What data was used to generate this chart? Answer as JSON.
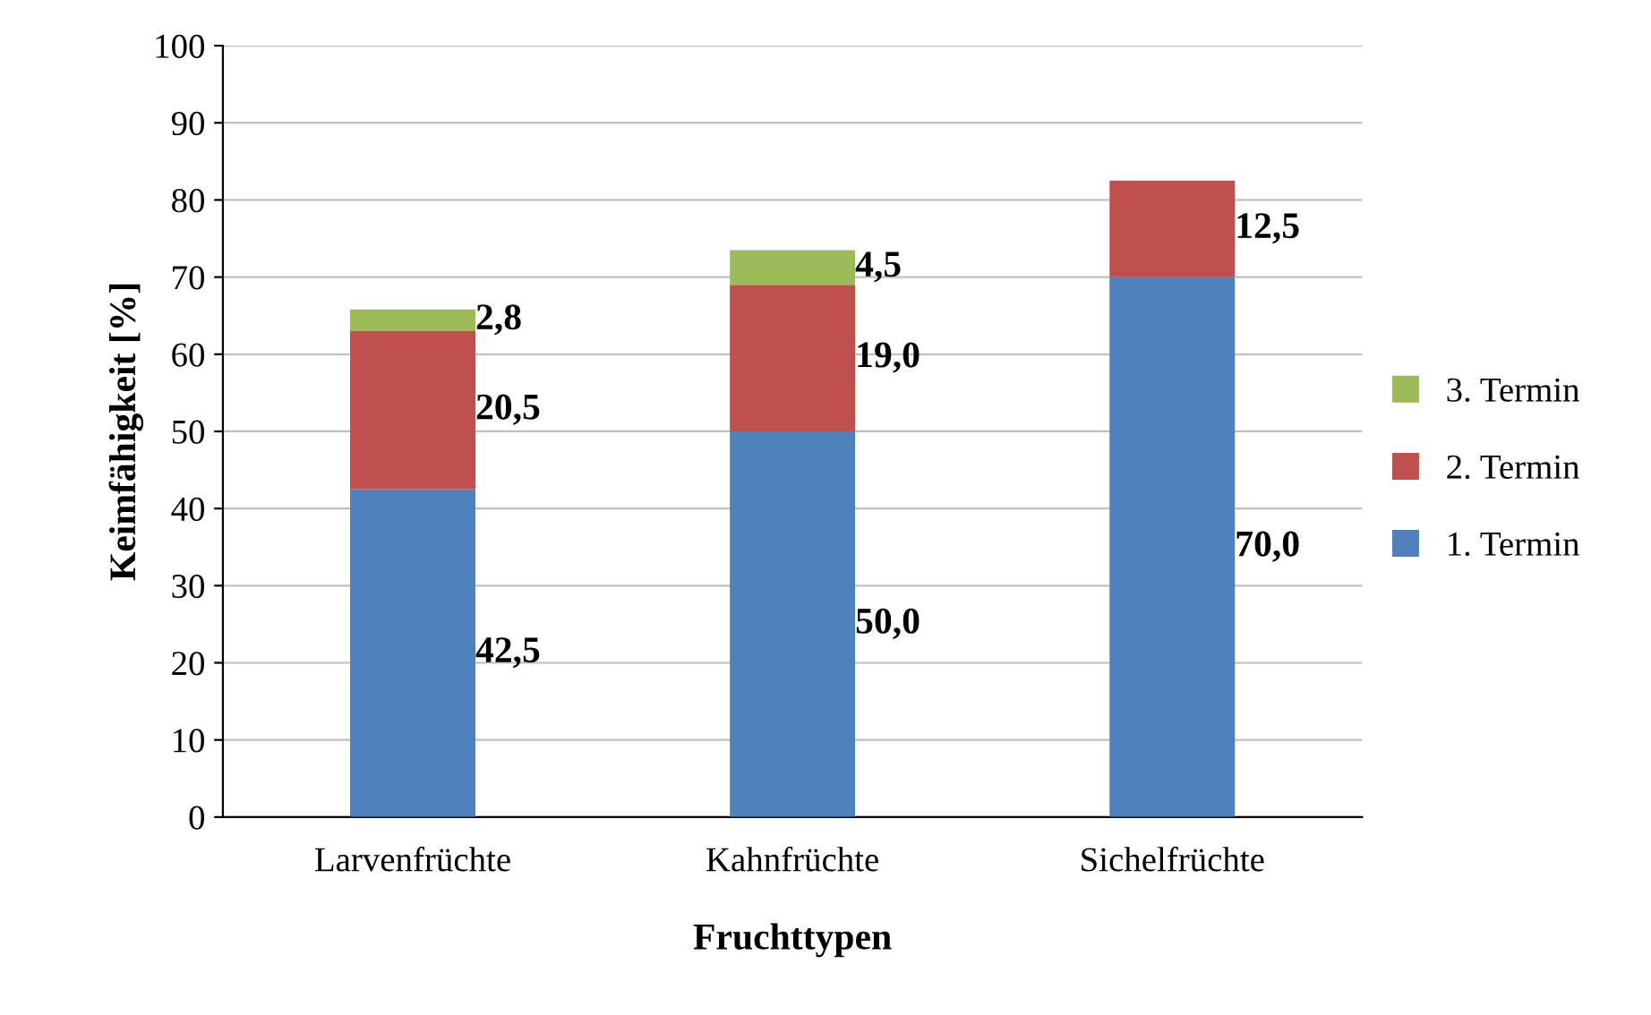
{
  "chart_data": {
    "type": "bar",
    "stacked": true,
    "xlabel": "Fruchttypen",
    "ylabel": "Keimfähigkeit [%]",
    "categories": [
      "Larvenfrüchte",
      "Kahnfrüchte",
      "Sichelfrüchte"
    ],
    "series": [
      {
        "name": "1. Termin",
        "color": "#4f81bd",
        "values": [
          42.5,
          50.0,
          70.0
        ],
        "value_labels": [
          "42,5",
          "50,0",
          "70,0"
        ]
      },
      {
        "name": "2. Termin",
        "color": "#c0504d",
        "values": [
          20.5,
          19.0,
          12.5
        ],
        "value_labels": [
          "20,5",
          "19,0",
          "12,5"
        ]
      },
      {
        "name": "3. Termin",
        "color": "#9bbb59",
        "values": [
          2.8,
          4.5,
          null
        ],
        "value_labels": [
          "2,8",
          "4,5",
          null
        ]
      }
    ],
    "ylim": [
      0,
      100
    ],
    "yticks": [
      0,
      10,
      20,
      30,
      40,
      50,
      60,
      70,
      80,
      90,
      100
    ],
    "grid": "y",
    "legend": "right"
  }
}
